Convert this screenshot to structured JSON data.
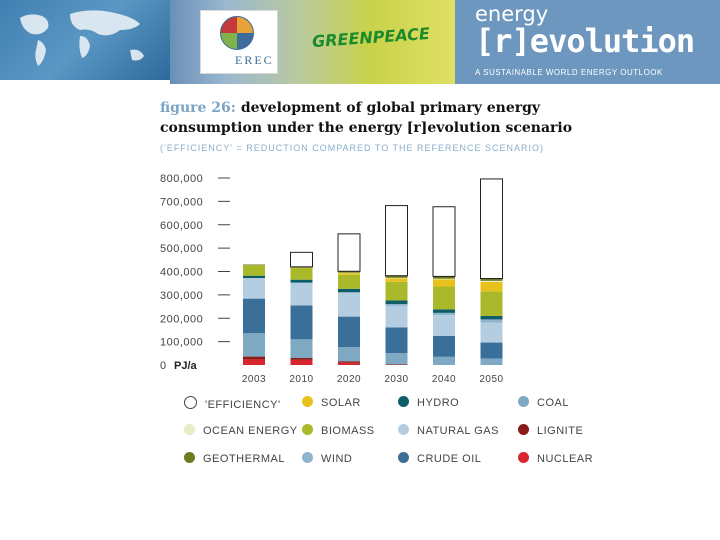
{
  "banner": {
    "erec_label": "EREC",
    "greenpeace_label": "GREENPEACE",
    "title_top": "energy",
    "title_main": "[r]evolution",
    "subtitle": "A SUSTAINABLE WORLD ENERGY OUTLOOK"
  },
  "figure": {
    "label": "figure 26:",
    "title": "development of global primary energy consumption under the energy [r]evolution scenario",
    "subtitle": "('EFFICIENCY' = REDUCTION COMPARED TO THE REFERENCE SCENARIO)"
  },
  "chart_data": {
    "type": "bar",
    "stacked": true,
    "unit_label": "PJ/a",
    "y_ticks": [
      "800,000",
      "700,000",
      "600,000",
      "500,000",
      "400,000",
      "300,000",
      "200,000",
      "100,000",
      "0"
    ],
    "ylim": [
      0,
      800000
    ],
    "categories": [
      "2003",
      "2010",
      "2020",
      "2030",
      "2040",
      "2050"
    ],
    "series": [
      {
        "name": "NUCLEAR",
        "color": "#d9262e",
        "values": [
          24000,
          22000,
          10000,
          0,
          0,
          0
        ]
      },
      {
        "name": "LIGNITE",
        "color": "#8b1a1a",
        "values": [
          12000,
          8000,
          5000,
          3000,
          0,
          0
        ]
      },
      {
        "name": "COAL",
        "color": "#7fa8c3",
        "values": [
          100000,
          80000,
          62000,
          48000,
          35000,
          28000
        ]
      },
      {
        "name": "CRUDE OIL",
        "color": "#3a6f99",
        "values": [
          148000,
          145000,
          130000,
          110000,
          90000,
          68000
        ]
      },
      {
        "name": "NATURAL GAS",
        "color": "#b5cde0",
        "values": [
          88000,
          95000,
          100000,
          92000,
          88000,
          85000
        ]
      },
      {
        "name": "WIND",
        "color": "#8fb4cd",
        "values": [
          0,
          3000,
          5000,
          8000,
          10000,
          14000
        ]
      },
      {
        "name": "HYDRO",
        "color": "#0d5e69",
        "values": [
          10000,
          12000,
          14000,
          15000,
          15000,
          15000
        ]
      },
      {
        "name": "BIOMASS",
        "color": "#aab92a",
        "values": [
          45000,
          50000,
          60000,
          80000,
          98000,
          105000
        ]
      },
      {
        "name": "SOLAR",
        "color": "#e8c21a",
        "values": [
          0,
          1000,
          8000,
          15000,
          30000,
          40000
        ]
      },
      {
        "name": "OCEAN ENERGY",
        "color": "#e6efc4",
        "values": [
          0,
          0,
          1000,
          2000,
          3000,
          5000
        ]
      },
      {
        "name": "GEOTHERMAL",
        "color": "#6e7a1e",
        "values": [
          3000,
          4000,
          6000,
          9000,
          10000,
          10000
        ]
      },
      {
        "name": "'EFFICIENCY'",
        "color": "#ffffff",
        "outline": true,
        "values": [
          0,
          62000,
          160000,
          300000,
          298000,
          426000
        ]
      }
    ]
  },
  "legend": [
    {
      "label": "'EFFICIENCY'",
      "color": "#ffffff",
      "outline": true
    },
    {
      "label": "SOLAR",
      "color": "#e8c21a"
    },
    {
      "label": "HYDRO",
      "color": "#0d5e69"
    },
    {
      "label": "COAL",
      "color": "#7fa8c3"
    },
    {
      "label": "OCEAN ENERGY",
      "color": "#e6efc4"
    },
    {
      "label": "BIOMASS",
      "color": "#aab92a"
    },
    {
      "label": "NATURAL GAS",
      "color": "#b5cde0"
    },
    {
      "label": "LIGNITE",
      "color": "#8b1a1a"
    },
    {
      "label": "GEOTHERMAL",
      "color": "#6e7a1e"
    },
    {
      "label": "WIND",
      "color": "#8fb4cd"
    },
    {
      "label": "CRUDE OIL",
      "color": "#3a6f99"
    },
    {
      "label": "NUCLEAR",
      "color": "#d9262e"
    }
  ]
}
